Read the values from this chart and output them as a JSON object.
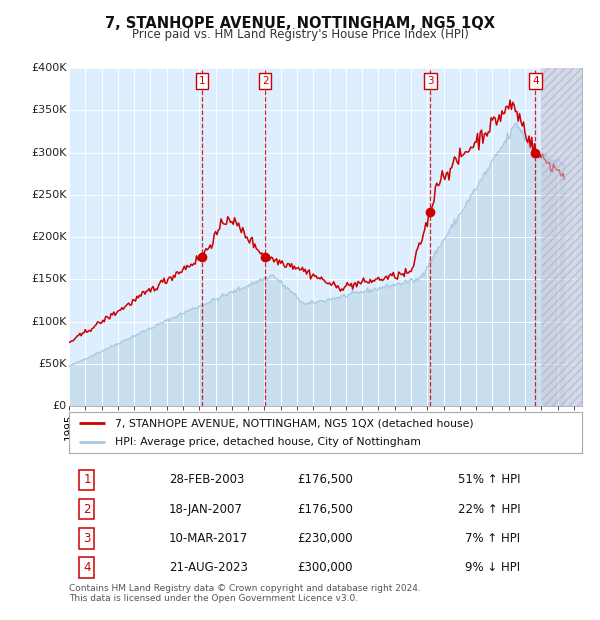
{
  "title": "7, STANHOPE AVENUE, NOTTINGHAM, NG5 1QX",
  "subtitle": "Price paid vs. HM Land Registry's House Price Index (HPI)",
  "hpi_color": "#aac8e0",
  "hpi_fill_color": "#c8dff0",
  "price_color": "#cc0000",
  "dot_color": "#cc0000",
  "plot_bg": "#ddeeff",
  "grid_color": "#ffffff",
  "ylim": [
    0,
    400000
  ],
  "yticks": [
    0,
    50000,
    100000,
    150000,
    200000,
    250000,
    300000,
    350000,
    400000
  ],
  "ytick_labels": [
    "£0",
    "£50K",
    "£100K",
    "£150K",
    "£200K",
    "£250K",
    "£300K",
    "£350K",
    "£400K"
  ],
  "xlim_start": 1995.0,
  "xlim_end": 2026.5,
  "sale_dates": [
    2003.16,
    2007.05,
    2017.19,
    2023.64
  ],
  "sale_prices": [
    176500,
    176500,
    230000,
    300000
  ],
  "sale_labels": [
    "1",
    "2",
    "3",
    "4"
  ],
  "sale_date_strs": [
    "28-FEB-2003",
    "18-JAN-2007",
    "10-MAR-2017",
    "21-AUG-2023"
  ],
  "sale_price_strs": [
    "£176,500",
    "£176,500",
    "£230,000",
    "£300,000"
  ],
  "sale_hpi_strs": [
    "51% ↑ HPI",
    "22% ↑ HPI",
    "7% ↑ HPI",
    "9% ↓ HPI"
  ],
  "legend_line1": "7, STANHOPE AVENUE, NOTTINGHAM, NG5 1QX (detached house)",
  "legend_line2": "HPI: Average price, detached house, City of Nottingham",
  "footer": "Contains HM Land Registry data © Crown copyright and database right 2024.\nThis data is licensed under the Open Government Licence v3.0.",
  "future_start": 2024.0
}
